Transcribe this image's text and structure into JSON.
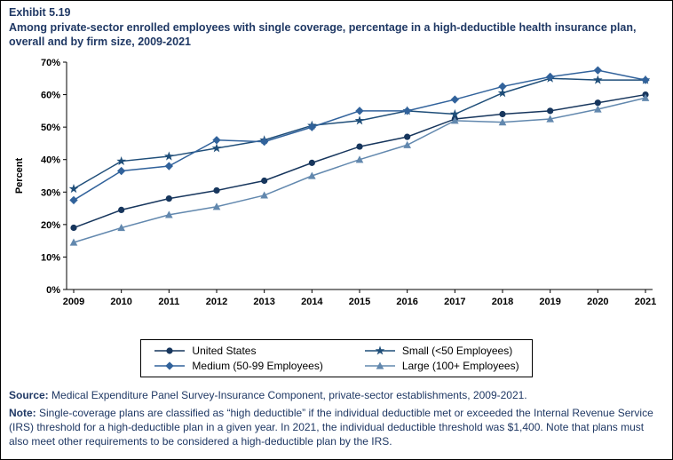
{
  "header": {
    "exhibit": "Exhibit 5.19",
    "title": "Among private-sector enrolled employees with single coverage, percentage in a high-deductible health insurance plan, overall and by firm size, 2009-2021"
  },
  "chart_data": {
    "type": "line",
    "title": "",
    "xlabel": "",
    "ylabel": "Percent",
    "ylim": [
      0,
      70
    ],
    "ytick_step": 10,
    "ytick_suffix": "%",
    "grid": false,
    "legend_position": "bottom",
    "categories": [
      "2009",
      "2010",
      "2011",
      "2012",
      "2013",
      "2014",
      "2015",
      "2016",
      "2017",
      "2018",
      "2019",
      "2020",
      "2021"
    ],
    "series": [
      {
        "name": "United States",
        "marker": "circle",
        "color": "#17365d",
        "values": [
          19,
          24.5,
          28,
          30.5,
          33.5,
          39,
          44,
          47,
          52.5,
          54,
          55,
          57.5,
          60
        ]
      },
      {
        "name": "Small (<50 Employees)",
        "marker": "star",
        "color": "#1f4e79",
        "values": [
          31,
          39.5,
          41,
          43.5,
          46,
          50.5,
          52,
          55,
          54,
          60.5,
          65,
          64.5,
          64.5
        ]
      },
      {
        "name": "Medium (50-99 Employees)",
        "marker": "diamond",
        "color": "#31629b",
        "values": [
          27.5,
          36.5,
          38,
          46,
          45.5,
          50,
          55,
          55,
          58.5,
          62.5,
          65.5,
          67.5,
          64.5
        ]
      },
      {
        "name": "Large (100+ Employees)",
        "marker": "triangle",
        "color": "#6288ae",
        "values": [
          14.5,
          19,
          23,
          25.5,
          29,
          35,
          40,
          44.5,
          52,
          51.5,
          52.5,
          55.5,
          59
        ]
      }
    ]
  },
  "colors": {
    "title_text": "#1f3864",
    "note_text": "#1f3864",
    "axis": "#000000",
    "background": "#ffffff"
  },
  "notes": {
    "source_label": "Source:",
    "source_text": " Medical Expenditure Panel Survey-Insurance Component, private-sector establishments, 2009-2021.",
    "note_label": "Note:",
    "note_text": " Single-coverage plans are classified as “high deductible” if the individual deductible met or exceeded the Internal Revenue Service (IRS) threshold for a high-deductible plan in a given year. In 2021, the individual deductible threshold was $1,400. Note that plans must also meet other requirements to be considered a high-deductible plan by the IRS."
  }
}
